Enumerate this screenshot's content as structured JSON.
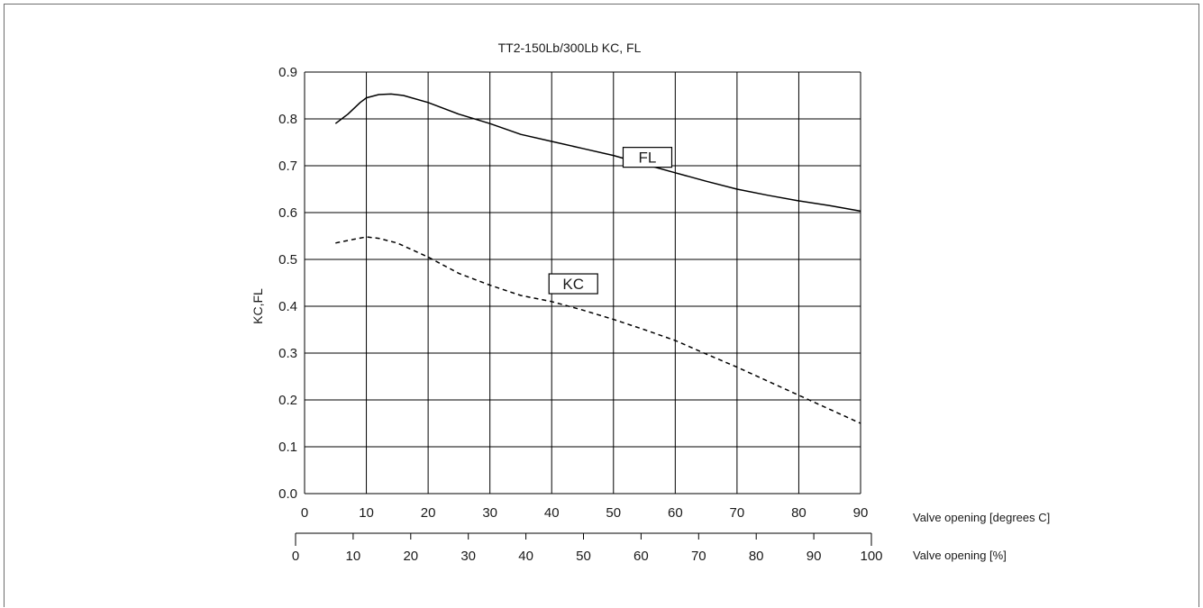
{
  "chart_data": {
    "type": "line",
    "title": "TT2-150Lb/300Lb KC, FL",
    "ylabel": "KC,FL",
    "xlabel": "Valve opening [degrees C]",
    "x2label": "Valve opening [%]",
    "xlim": [
      0,
      90
    ],
    "ylim": [
      0.0,
      0.9
    ],
    "x_ticks": [
      "0",
      "10",
      "20",
      "30",
      "40",
      "50",
      "60",
      "70",
      "80",
      "90"
    ],
    "y_ticks": [
      "0.0",
      "0.1",
      "0.2",
      "0.3",
      "0.4",
      "0.5",
      "0.6",
      "0.7",
      "0.8",
      "0.9"
    ],
    "x2_ticks": [
      "0",
      "10",
      "20",
      "30",
      "40",
      "50",
      "60",
      "70",
      "80",
      "90",
      "100"
    ],
    "x2lim": [
      0,
      100
    ],
    "grid": true,
    "series": [
      {
        "name": "FL",
        "style": "solid",
        "color": "#000000",
        "x": [
          5,
          7,
          9,
          10,
          12,
          14,
          16,
          20,
          25,
          30,
          35,
          40,
          45,
          50,
          55,
          60,
          65,
          70,
          75,
          80,
          85,
          90
        ],
        "y": [
          0.79,
          0.81,
          0.835,
          0.845,
          0.852,
          0.853,
          0.85,
          0.835,
          0.81,
          0.79,
          0.767,
          0.752,
          0.737,
          0.722,
          0.703,
          0.685,
          0.667,
          0.65,
          0.637,
          0.625,
          0.615,
          0.603
        ]
      },
      {
        "name": "KC",
        "style": "dashed",
        "color": "#000000",
        "x": [
          5,
          8,
          10,
          12,
          15,
          20,
          25,
          30,
          35,
          40,
          45,
          50,
          55,
          60,
          65,
          70,
          75,
          80,
          85,
          90
        ],
        "y": [
          0.535,
          0.543,
          0.548,
          0.545,
          0.535,
          0.505,
          0.47,
          0.445,
          0.423,
          0.41,
          0.392,
          0.372,
          0.35,
          0.327,
          0.298,
          0.27,
          0.24,
          0.21,
          0.18,
          0.15
        ]
      }
    ],
    "annotations": [
      {
        "text": "FL",
        "x": 55.5,
        "y": 0.718
      },
      {
        "text": "KC",
        "x": 43.5,
        "y": 0.448
      }
    ]
  }
}
